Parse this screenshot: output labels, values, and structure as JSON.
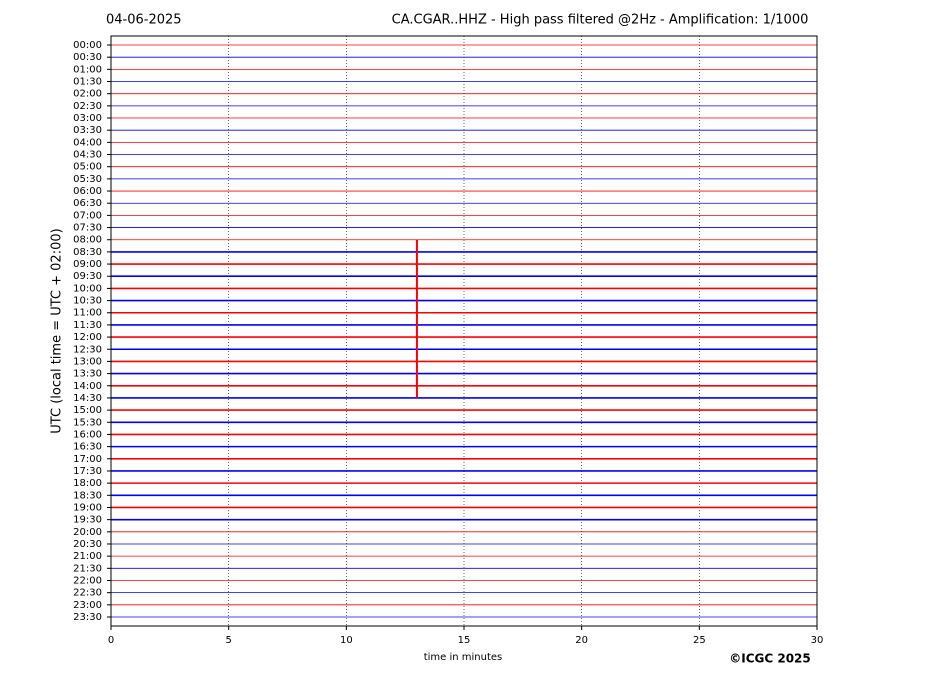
{
  "chart_data": {
    "type": "helicorder",
    "title_left": "04-06-2025",
    "title": "CA.CGAR..HHZ - High pass filtered @2Hz - Amplification: 1/1000",
    "y_label": "UTC (local time = UTC + 02:00)",
    "x_label": "time in minutes",
    "credit": "©ICGC 2025",
    "categories": [
      "00:00",
      "00:30",
      "01:00",
      "01:30",
      "02:00",
      "02:30",
      "03:00",
      "03:30",
      "04:00",
      "04:30",
      "05:00",
      "05:30",
      "06:00",
      "06:30",
      "07:00",
      "07:30",
      "08:00",
      "08:30",
      "09:00",
      "09:30",
      "10:00",
      "10:30",
      "11:00",
      "11:30",
      "12:00",
      "12:30",
      "13:00",
      "13:30",
      "14:00",
      "14:30",
      "15:00",
      "15:30",
      "16:00",
      "16:30",
      "17:00",
      "17:30",
      "18:00",
      "18:30",
      "19:00",
      "19:30",
      "20:00",
      "20:30",
      "21:00",
      "21:30",
      "22:00",
      "22:30",
      "23:00",
      "23:30"
    ],
    "colors": [
      "#ff0000",
      "#0000ff"
    ],
    "xlim": [
      0,
      30
    ],
    "xticks": [
      0,
      5,
      10,
      15,
      20,
      25,
      30
    ],
    "grid": true,
    "events": [
      {
        "x": 13,
        "y": [
          8,
          14.5
        ],
        "color": "#ff0000"
      }
    ]
  }
}
